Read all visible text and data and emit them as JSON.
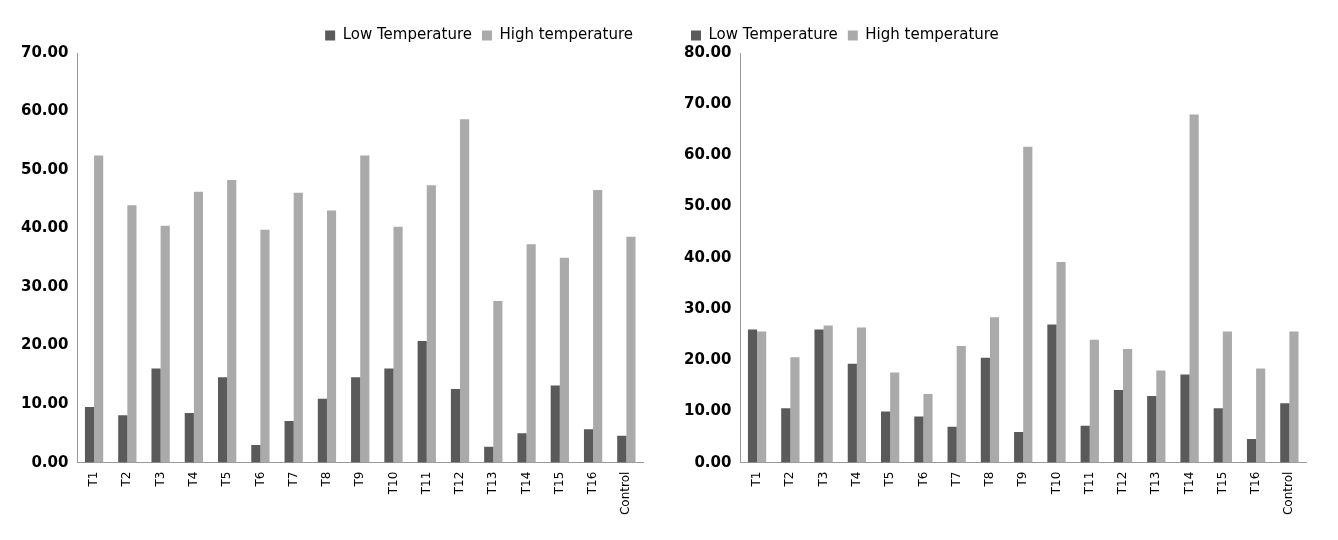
{
  "chart_data": [
    {
      "type": "bar",
      "categories": [
        "T1",
        "T2",
        "T3",
        "T4",
        "T5",
        "T6",
        "T7",
        "T8",
        "T9",
        "T10",
        "T11",
        "T12",
        "T13",
        "T14",
        "T15",
        "T16",
        "Control"
      ],
      "series": [
        {
          "name": "Low Temperature",
          "color": "#5a5a5a",
          "values": [
            9.5,
            8.1,
            16.1,
            8.5,
            14.6,
            3.0,
            7.1,
            10.9,
            14.6,
            16.1,
            20.8,
            12.6,
            2.7,
            5.0,
            13.2,
            5.7,
            4.6
          ]
        },
        {
          "name": "High temperature",
          "color": "#aaaaaa",
          "values": [
            52.5,
            44.0,
            40.5,
            46.3,
            48.3,
            39.8,
            46.1,
            43.1,
            52.5,
            40.3,
            47.4,
            58.7,
            27.6,
            37.3,
            35.0,
            46.6,
            38.6
          ]
        }
      ],
      "ylim": [
        0,
        70
      ],
      "yticks": [
        {
          "value": 0,
          "label": "0.00"
        },
        {
          "value": 10,
          "label": "10.00"
        },
        {
          "value": 20,
          "label": "20.00"
        },
        {
          "value": 30,
          "label": "30.00"
        },
        {
          "value": 40,
          "label": "40.00"
        },
        {
          "value": 50,
          "label": "50.00"
        },
        {
          "value": 60,
          "label": "60.00"
        },
        {
          "value": 70,
          "label": "70.00"
        }
      ],
      "grid": false,
      "legend": "top right"
    },
    {
      "type": "bar",
      "categories": [
        "T1",
        "T2",
        "T3",
        "T4",
        "T5",
        "T6",
        "T7",
        "T8",
        "T9",
        "T10",
        "T11",
        "T12",
        "T13",
        "T14",
        "T15",
        "T16",
        "Control"
      ],
      "series": [
        {
          "name": "Low Temperature",
          "color": "#5a5a5a",
          "values": [
            26.0,
            10.6,
            26.0,
            19.3,
            10.0,
            9.0,
            7.0,
            20.5,
            6.0,
            27.0,
            7.2,
            14.2,
            13.0,
            17.2,
            10.6,
            4.6,
            11.6
          ]
        },
        {
          "name": "High temperature",
          "color": "#aaaaaa",
          "values": [
            25.6,
            20.6,
            26.8,
            26.4,
            17.6,
            13.4,
            22.8,
            28.4,
            61.7,
            39.2,
            24.0,
            22.2,
            18.0,
            68.0,
            25.6,
            18.4,
            25.6
          ]
        }
      ],
      "ylim": [
        0,
        80
      ],
      "yticks": [
        {
          "value": 0,
          "label": "0.00"
        },
        {
          "value": 10,
          "label": "10.00"
        },
        {
          "value": 20,
          "label": "20.00"
        },
        {
          "value": 30,
          "label": "30.00"
        },
        {
          "value": 40,
          "label": "40.00"
        },
        {
          "value": 50,
          "label": "50.00"
        },
        {
          "value": 60,
          "label": "60.00"
        },
        {
          "value": 70,
          "label": "70.00"
        },
        {
          "value": 80,
          "label": "80.00"
        }
      ],
      "grid": false,
      "legend": "top left"
    }
  ]
}
